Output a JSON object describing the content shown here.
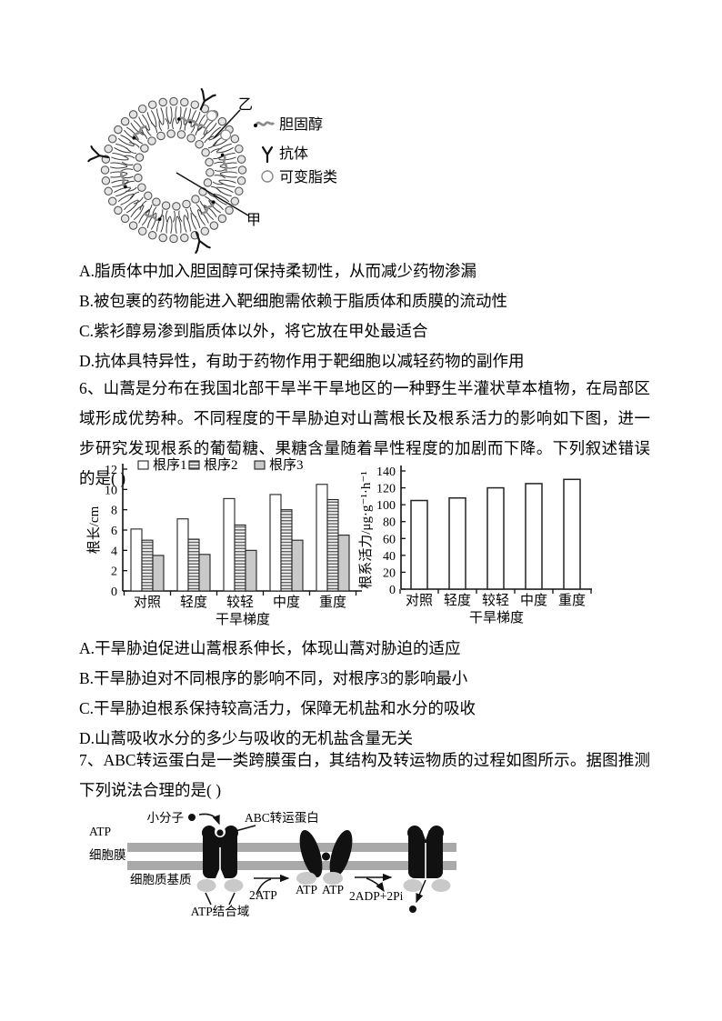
{
  "q5": {
    "figure": {
      "label_yi": "乙",
      "label_jia": "甲",
      "legend": {
        "cholesterol": "胆固醇",
        "antibody": "抗体",
        "variable_lipid": "可变脂类"
      }
    },
    "options": [
      "A.脂质体中加入胆固醇可保持柔韧性，从而减少药物渗漏",
      "B.被包裹的药物能进入靶细胞需依赖于脂质体和质膜的流动性",
      "C.紫衫醇易渗到脂质体以外，将它放在甲处最适合",
      "D.抗体具特异性，有助于药物作用于靶细胞以减轻药物的副作用"
    ]
  },
  "q6": {
    "stem": "6、山蒿是分布在我国北部干旱半干旱地区的一种野生半灌状草本植物，在局部区域形成优势种。不同程度的干旱胁迫对山蒿根长及根系活力的影响如下图，进一步研究发现根系的葡萄糖、果糖含量随着旱性程度的加剧而下降。下列叙述错误的是( )",
    "options": [
      "A.干旱胁迫促进山蒿根系伸长，体现山蒿对胁迫的适应",
      "B.干旱胁迫对不同根序的影响不同，对根序3的影响最小",
      "C.干旱胁迫根系保持较高活力，保障无机盐和水分的吸收",
      "D.山蒿吸收水分的多少与吸收的无机盐含量无关"
    ]
  },
  "chart_data": [
    {
      "type": "bar",
      "categories": [
        "对照",
        "轻度",
        "较轻",
        "中度",
        "重度"
      ],
      "series": [
        {
          "name": "根序1",
          "fill": "white",
          "values": [
            6.1,
            7.1,
            9.1,
            9.5,
            10.5
          ]
        },
        {
          "name": "根序2",
          "fill": "hstripe",
          "values": [
            5.0,
            5.1,
            6.5,
            8.0,
            9.0
          ]
        },
        {
          "name": "根序3",
          "fill": "gray",
          "values": [
            3.5,
            3.6,
            4.0,
            5.0,
            5.5
          ]
        }
      ],
      "xlabel": "干旱梯度",
      "ylabel": "根长/cm",
      "ylim": [
        0,
        12
      ],
      "ytick_step": 2,
      "legend_position": "top",
      "grid": false
    },
    {
      "type": "bar",
      "categories": [
        "对照",
        "轻度",
        "较轻",
        "中度",
        "重度"
      ],
      "values": [
        105,
        108,
        120,
        125,
        130
      ],
      "xlabel": "干旱梯度",
      "ylabel": "根系活力/μg·g⁻¹·h⁻¹",
      "ylim": [
        0,
        140
      ],
      "ytick_step": 20,
      "bar_fill": "white",
      "grid": false
    }
  ],
  "q7": {
    "stem": "7、ABC转运蛋白是一类跨膜蛋白，其结构及转运物质的过程如图所示。据图推测下列说法合理的是( )",
    "diagram": {
      "small_molecule": "小分子",
      "transporter": "ABC转运蛋白",
      "atp_left": "ATP",
      "membrane": "细胞膜",
      "cytoplasm": "细胞质基质",
      "atp_binding_domain": "ATP结合域",
      "reaction_forward": "2ATP",
      "atp_bound_1": "ATP",
      "atp_bound_2": "ATP",
      "reaction_release": "2ADP+2Pi"
    }
  },
  "colors": {
    "membrane_gray": "#a9a9a9",
    "domain_gray": "#c9c9c9",
    "bar_gray": "#c9c9c9",
    "ink": "#000000"
  }
}
